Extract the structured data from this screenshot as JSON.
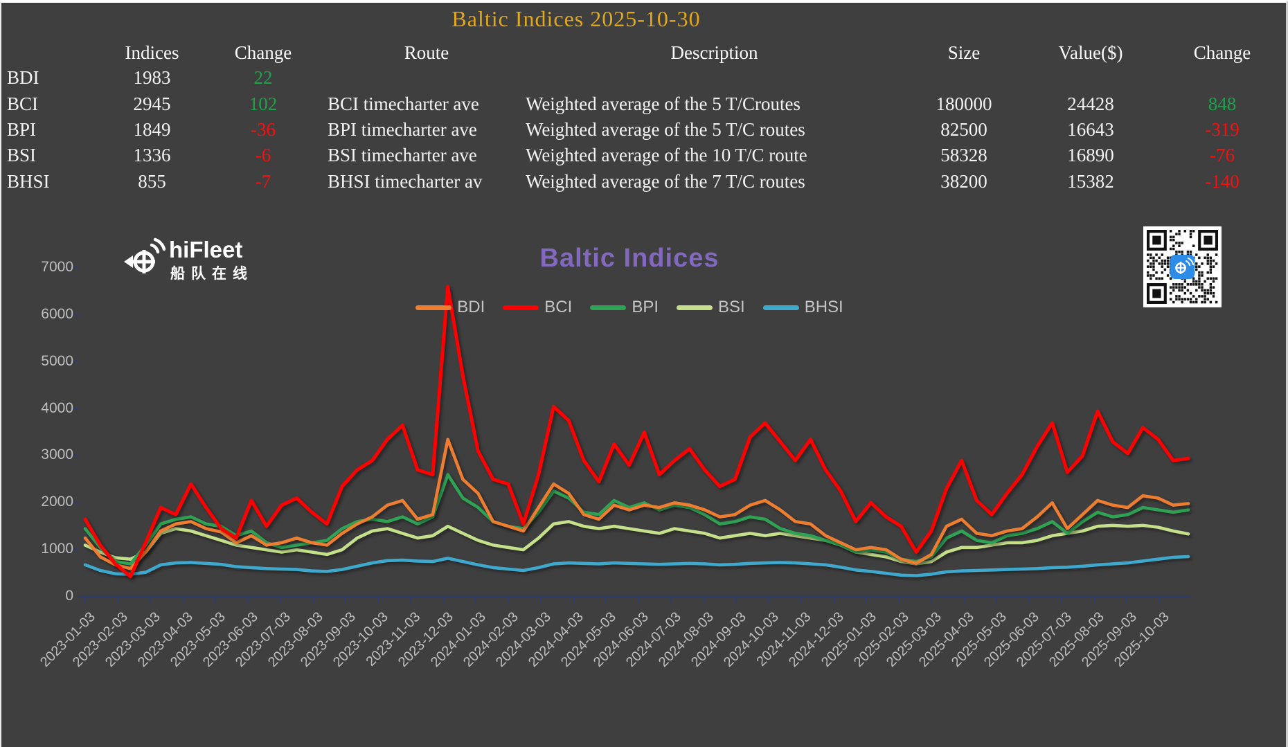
{
  "window": {
    "title": "Baltic Indices 2025-10-30"
  },
  "table": {
    "headers": [
      "Indices",
      "Change",
      "Route",
      "Description",
      "Size",
      "Value($)",
      "Change"
    ],
    "rows": [
      {
        "name": "BDI",
        "indices": "1983",
        "change": "22",
        "route": "",
        "description": "",
        "size": "",
        "value": "",
        "value_change": ""
      },
      {
        "name": "BCI",
        "indices": "2945",
        "change": "102",
        "route": "BCI timecharter ave",
        "description": "Weighted average of the 5 T/Croutes",
        "size": "180000",
        "value": "24428",
        "value_change": "848"
      },
      {
        "name": "BPI",
        "indices": "1849",
        "change": "-36",
        "route": "BPI timecharter ave",
        "description": "Weighted average of the 5 T/C routes",
        "size": "82500",
        "value": "16643",
        "value_change": "-319"
      },
      {
        "name": "BSI",
        "indices": "1336",
        "change": "-6",
        "route": "BSI timecharter ave",
        "description": "Weighted average of the 10 T/C route",
        "size": "58328",
        "value": "16890",
        "value_change": "-76"
      },
      {
        "name": "BHSI",
        "indices": "855",
        "change": "-7",
        "route": "BHSI timecharter av",
        "description": "Weighted average of the 7 T/C routes",
        "size": "38200",
        "value": "15382",
        "value_change": "-140"
      }
    ]
  },
  "logo": {
    "brand": "hiFleet",
    "subtitle": "船队在线"
  },
  "colors": {
    "background": "#3F3F3F",
    "title_gold": "#E2A81C",
    "positive_green": "#1CA24A",
    "negative_red": "#FD0D0D",
    "chart_title_purple": "#8268BE",
    "axis_text": "#BEBEBE",
    "axis_line": "#2E3D6B"
  },
  "chart_data": {
    "type": "line",
    "title": "Baltic Indices",
    "xlabel": "",
    "ylabel": "",
    "ylim": [
      0,
      7000
    ],
    "yticks": [
      0,
      1000,
      2000,
      3000,
      4000,
      5000,
      6000,
      7000
    ],
    "grid": false,
    "legend_position": "top-center",
    "x_tick_labels": [
      "2023-01-03",
      "2023-02-03",
      "2023-03-03",
      "2023-04-03",
      "2023-05-03",
      "2023-06-03",
      "2023-07-03",
      "2023-08-03",
      "2023-09-03",
      "2023-10-03",
      "2023-11-03",
      "2023-12-03",
      "2024-01-03",
      "2024-02-03",
      "2024-03-03",
      "2024-04-03",
      "2024-05-03",
      "2024-06-03",
      "2024-07-03",
      "2024-08-03",
      "2024-09-03",
      "2024-10-03",
      "2024-11-03",
      "2024-12-03",
      "2025-01-03",
      "2025-02-03",
      "2025-03-03",
      "2025-04-03",
      "2025-05-03",
      "2025-06-03",
      "2025-07-03",
      "2025-08-03",
      "2025-09-03",
      "2025-10-03"
    ],
    "x_sample_interval": "biweekly from 2023-01-03 to 2025-10-30",
    "series": [
      {
        "name": "BDI",
        "color": "#ED7D31",
        "values": [
          1250,
          850,
          680,
          600,
          950,
          1400,
          1550,
          1600,
          1450,
          1380,
          1150,
          1300,
          1100,
          1150,
          1250,
          1150,
          1100,
          1350,
          1550,
          1700,
          1950,
          2050,
          1650,
          1750,
          3350,
          2500,
          2200,
          1600,
          1500,
          1400,
          1900,
          2400,
          2200,
          1750,
          1650,
          1950,
          1850,
          1950,
          1900,
          2000,
          1950,
          1850,
          1700,
          1750,
          1950,
          2050,
          1850,
          1600,
          1550,
          1300,
          1150,
          1000,
          1050,
          1000,
          800,
          715,
          900,
          1500,
          1650,
          1350,
          1300,
          1400,
          1450,
          1700,
          2000,
          1450,
          1750,
          2050,
          1950,
          1900,
          2150,
          2100,
          1950,
          1983
        ]
      },
      {
        "name": "BCI",
        "color": "#FF0000",
        "values": [
          1650,
          1100,
          700,
          430,
          1150,
          1900,
          1750,
          2400,
          1900,
          1450,
          1250,
          2050,
          1500,
          1950,
          2100,
          1800,
          1550,
          2350,
          2700,
          2900,
          3350,
          3650,
          2700,
          2600,
          6600,
          4700,
          3100,
          2500,
          2400,
          1550,
          2600,
          4050,
          3750,
          2900,
          2450,
          3250,
          2800,
          3500,
          2600,
          2900,
          3150,
          2700,
          2350,
          2500,
          3400,
          3700,
          3300,
          2900,
          3350,
          2700,
          2250,
          1600,
          2000,
          1700,
          1500,
          950,
          1400,
          2300,
          2900,
          2050,
          1750,
          2200,
          2600,
          3200,
          3700,
          2650,
          3000,
          3950,
          3300,
          3050,
          3600,
          3350,
          2900,
          2945
        ]
      },
      {
        "name": "BPI",
        "color": "#2FA254",
        "values": [
          1450,
          1050,
          750,
          700,
          1100,
          1550,
          1650,
          1700,
          1550,
          1500,
          1300,
          1400,
          1150,
          1050,
          1100,
          1150,
          1200,
          1450,
          1600,
          1650,
          1600,
          1700,
          1550,
          1700,
          2600,
          2100,
          1900,
          1600,
          1500,
          1450,
          1800,
          2250,
          2100,
          1800,
          1750,
          2050,
          1900,
          2000,
          1850,
          1950,
          1900,
          1750,
          1550,
          1600,
          1700,
          1650,
          1450,
          1350,
          1300,
          1200,
          1100,
          950,
          1000,
          950,
          800,
          750,
          850,
          1250,
          1400,
          1200,
          1150,
          1300,
          1350,
          1450,
          1600,
          1350,
          1600,
          1800,
          1700,
          1750,
          1900,
          1850,
          1800,
          1849
        ]
      },
      {
        "name": "BSI",
        "color": "#C5E08B",
        "values": [
          1100,
          950,
          830,
          800,
          950,
          1350,
          1450,
          1400,
          1300,
          1200,
          1100,
          1050,
          1000,
          950,
          1000,
          950,
          900,
          1000,
          1250,
          1400,
          1450,
          1350,
          1250,
          1300,
          1500,
          1350,
          1200,
          1100,
          1050,
          1000,
          1250,
          1550,
          1600,
          1500,
          1450,
          1500,
          1450,
          1400,
          1350,
          1450,
          1400,
          1350,
          1250,
          1300,
          1350,
          1300,
          1350,
          1300,
          1250,
          1200,
          1100,
          950,
          900,
          850,
          750,
          700,
          750,
          950,
          1050,
          1050,
          1100,
          1150,
          1150,
          1200,
          1300,
          1350,
          1400,
          1500,
          1520,
          1500,
          1520,
          1480,
          1400,
          1336
        ]
      },
      {
        "name": "BHSI",
        "color": "#3FA8CD",
        "values": [
          680,
          560,
          490,
          480,
          520,
          680,
          720,
          730,
          710,
          690,
          640,
          620,
          600,
          590,
          580,
          550,
          540,
          580,
          650,
          720,
          770,
          780,
          760,
          750,
          820,
          750,
          680,
          620,
          590,
          560,
          620,
          700,
          720,
          710,
          700,
          720,
          710,
          700,
          690,
          700,
          710,
          700,
          680,
          690,
          710,
          720,
          730,
          720,
          700,
          680,
          630,
          570,
          540,
          500,
          460,
          450,
          480,
          530,
          550,
          560,
          570,
          580,
          590,
          600,
          620,
          630,
          650,
          680,
          700,
          720,
          760,
          800,
          840,
          855
        ]
      }
    ]
  }
}
